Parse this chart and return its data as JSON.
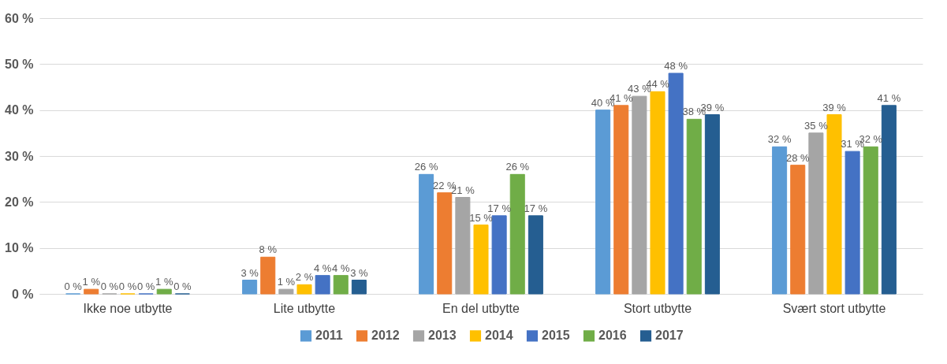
{
  "chart_data": {
    "type": "bar",
    "categories": [
      "Ikke noe utbytte",
      "Lite utbytte",
      "En del utbytte",
      "Stort utbytte",
      "Svært stort utbytte"
    ],
    "series": [
      {
        "name": "2011",
        "color": "#5b9bd5",
        "values": [
          0,
          3,
          26,
          40,
          32
        ],
        "value_labels": [
          "0 %",
          "3 %",
          "26 %",
          "40 %",
          "32 %"
        ]
      },
      {
        "name": "2012",
        "color": "#ed7d31",
        "values": [
          1,
          8,
          22,
          41,
          28
        ],
        "value_labels": [
          "1 %",
          "8 %",
          "22 %",
          "41 %",
          "28 %"
        ]
      },
      {
        "name": "2013",
        "color": "#a5a5a5",
        "values": [
          0,
          1,
          21,
          43,
          35
        ],
        "value_labels": [
          "0 %",
          "1 %",
          "21 %",
          "43 %",
          "35 %"
        ]
      },
      {
        "name": "2014",
        "color": "#ffc000",
        "values": [
          0,
          2,
          15,
          44,
          39
        ],
        "value_labels": [
          "0 %",
          "2 %",
          "15 %",
          "44 %",
          "39 %"
        ]
      },
      {
        "name": "2015",
        "color": "#4472c4",
        "values": [
          0,
          4,
          17,
          48,
          31
        ],
        "value_labels": [
          "0 %",
          "4 %",
          "17 %",
          "48 %",
          "31 %"
        ]
      },
      {
        "name": "2016",
        "color": "#70ad47",
        "values": [
          1,
          4,
          26,
          38,
          32
        ],
        "value_labels": [
          "1 %",
          "4 %",
          "26 %",
          "38 %",
          "32 %"
        ]
      },
      {
        "name": "2017",
        "color": "#255e91",
        "values": [
          0,
          3,
          17,
          39,
          41
        ],
        "value_labels": [
          "0 %",
          "3 %",
          "17 %",
          "39 %",
          "41 %"
        ]
      }
    ],
    "ylim": [
      0,
      60
    ],
    "yticks": [
      {
        "value": 0,
        "label": "0 %"
      },
      {
        "value": 10,
        "label": "10 %"
      },
      {
        "value": 20,
        "label": "20 %"
      },
      {
        "value": 30,
        "label": "30 %"
      },
      {
        "value": 40,
        "label": "40 %"
      },
      {
        "value": 50,
        "label": "50 %"
      },
      {
        "value": 60,
        "label": "60 %"
      }
    ],
    "grid": "y",
    "legend": "bottom"
  }
}
